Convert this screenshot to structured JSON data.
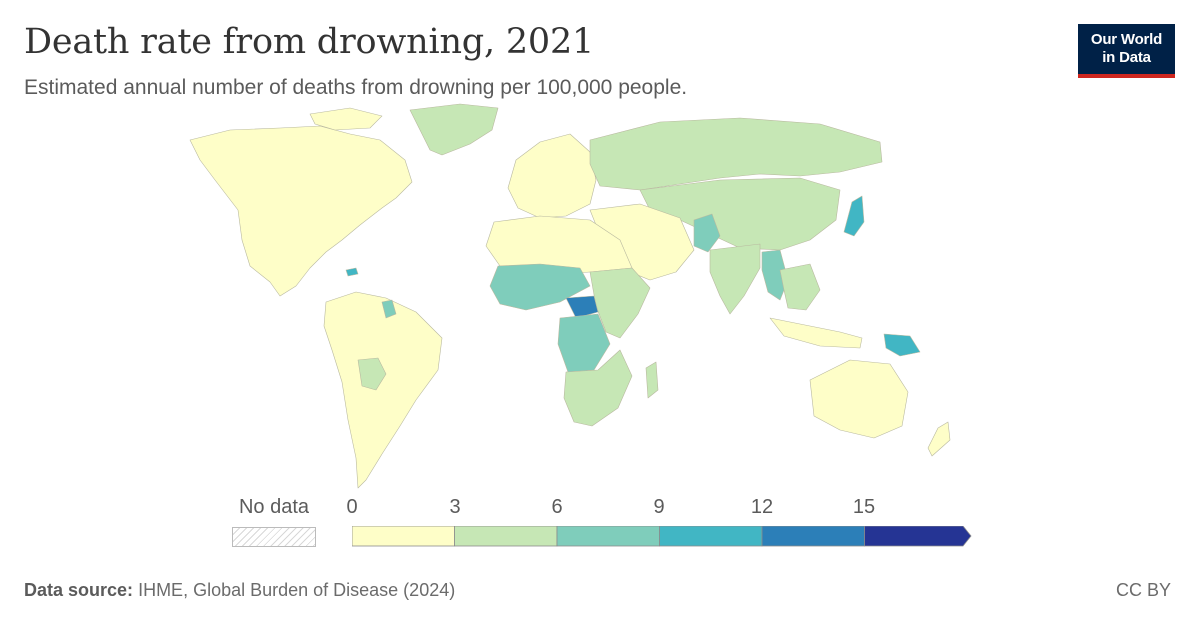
{
  "header": {
    "title": "Death rate from drowning, 2021",
    "subtitle": "Estimated annual number of deaths from drowning per 100,000 people."
  },
  "logo": {
    "line1": "Our World",
    "line2": "in Data",
    "background": "#002147",
    "accent": "#ce261e"
  },
  "legend": {
    "no_data_label": "No data",
    "ticks": [
      "0",
      "3",
      "6",
      "9",
      "12",
      "15"
    ],
    "bins": [
      {
        "from": 0,
        "to": 3,
        "color": "#fefec8"
      },
      {
        "from": 3,
        "to": 6,
        "color": "#c6e7b5"
      },
      {
        "from": 6,
        "to": 9,
        "color": "#7fcdbb"
      },
      {
        "from": 9,
        "to": 12,
        "color": "#41b6c4"
      },
      {
        "from": 12,
        "to": 15,
        "color": "#2c7fb8"
      },
      {
        "from": 15,
        "to": null,
        "color": "#253494"
      }
    ]
  },
  "map": {
    "land_color_default": "#fefec8",
    "highlighted_regions": [
      {
        "name": "Central African Republic",
        "bin": "12-15"
      },
      {
        "name": "Papua New Guinea",
        "bin": "9-12"
      },
      {
        "name": "Myanmar",
        "bin": "6-9"
      },
      {
        "name": "Pakistan",
        "bin": "6-9"
      },
      {
        "name": "Democratic Republic of Congo",
        "bin": "6-9"
      },
      {
        "name": "Niger",
        "bin": "6-9"
      }
    ]
  },
  "footer": {
    "source_label": "Data source:",
    "source_text": "IHME, Global Burden of Disease (2024)",
    "license": "CC BY"
  }
}
